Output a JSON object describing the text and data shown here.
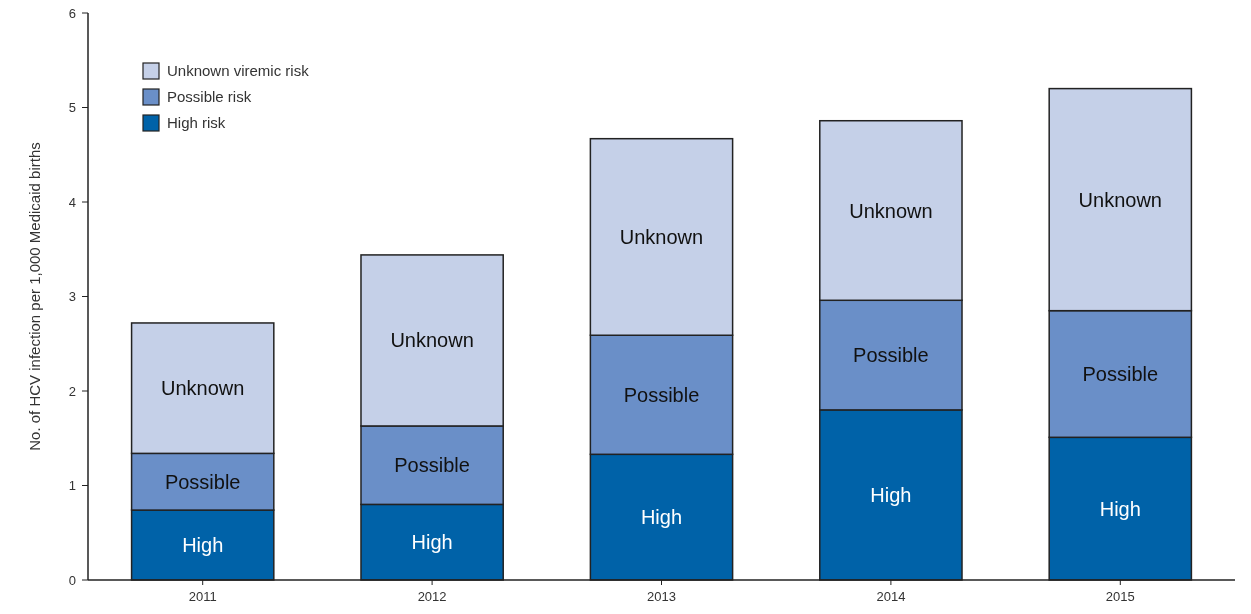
{
  "chart_data": {
    "type": "bar",
    "stacked": true,
    "ylabel": "No. of HCV infection per 1,000 Medicaid births",
    "categories": [
      "2011",
      "2012",
      "2013",
      "2014",
      "2015"
    ],
    "series": [
      {
        "name": "High risk",
        "color": "#0062a8",
        "values": [
          0.74,
          0.8,
          1.33,
          1.8,
          1.51
        ],
        "value_labels": [
          "High",
          "High",
          "High",
          "High",
          "High"
        ]
      },
      {
        "name": "Possible risk",
        "color": "#6a8fc8",
        "values": [
          0.6,
          0.83,
          1.26,
          1.16,
          1.34
        ],
        "value_labels": [
          "Possible",
          "Possible",
          "Possible",
          "Possible",
          "Possible"
        ]
      },
      {
        "name": "Unknown viremic risk",
        "color": "#c5d0e8",
        "values": [
          1.38,
          1.81,
          2.08,
          1.9,
          2.35
        ],
        "value_labels": [
          "Unknown",
          "Unknown",
          "Unknown",
          "Unknown",
          "Unknown"
        ]
      }
    ],
    "ylim": [
      0,
      6
    ],
    "yticks": [
      0,
      1,
      2,
      3,
      4,
      5,
      6
    ],
    "legend": "top left",
    "grid": false
  }
}
